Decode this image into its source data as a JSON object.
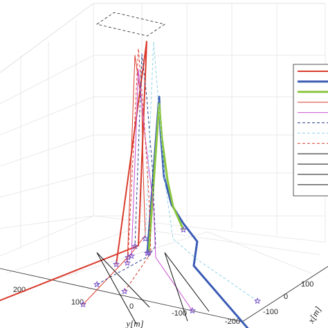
{
  "chart_data": {
    "type": "line",
    "title": "",
    "projection": "3d",
    "grid": true,
    "legend_placement": "right",
    "xlabel": "x[m]",
    "ylabel": "y[m]",
    "zlabel": "",
    "y_ticks": [
      "200",
      "100",
      "0",
      "-100",
      "-200"
    ],
    "x_ticks": [
      "100",
      "0",
      "-100"
    ],
    "series": [
      {
        "color": "#d93a2b",
        "style": "solid",
        "width": 2.0,
        "points": [
          [
            -88,
            -69
          ],
          [
            200,
            45
          ],
          [
            212,
            340
          ],
          [
            168,
            18
          ]
        ]
      },
      {
        "color": "#3a5bb5",
        "style": "solid",
        "width": 3.0,
        "points": [
          [
            368,
            -86
          ],
          [
            280,
            16
          ],
          [
            285,
            51
          ],
          [
            265,
            77
          ],
          [
            248,
            104
          ],
          [
            237,
            145
          ],
          [
            232,
            210
          ],
          [
            230,
            260
          ],
          [
            213,
            34
          ]
        ]
      },
      {
        "color": "#8cc63f",
        "style": "solid",
        "width": 3.0,
        "points": [
          [
            265,
            68
          ],
          [
            250,
            102
          ],
          [
            242,
            140
          ],
          [
            234,
            200
          ],
          [
            230,
            250
          ],
          [
            215,
            35
          ]
        ]
      },
      {
        "color": "#d93a2b",
        "style": "solid",
        "width": 1.0,
        "points": [
          [
            120,
            -40
          ],
          [
            190,
            34
          ],
          [
            210,
            60
          ],
          [
            207,
            150
          ],
          [
            205,
            250
          ],
          [
            195,
            320
          ],
          [
            184,
            20
          ]
        ]
      },
      {
        "color": "#c94fd1",
        "style": "solid",
        "width": 1.0,
        "points": [
          [
            278,
            -49
          ],
          [
            225,
            28
          ],
          [
            222,
            100
          ],
          [
            210,
            200
          ],
          [
            200,
            300
          ],
          [
            190,
            30
          ]
        ]
      },
      {
        "color": "#2b3f8a",
        "style": "dashed",
        "width": 1.0,
        "points": [
          [
            140,
            -11
          ],
          [
            215,
            30
          ],
          [
            225,
            45
          ],
          [
            220,
            160
          ],
          [
            212,
            260
          ],
          [
            205,
            322
          ],
          [
            195,
            44
          ]
        ]
      },
      {
        "color": "#8fd3e8",
        "style": "dashed",
        "width": 1.0,
        "points": [
          [
            372,
            -35
          ],
          [
            285,
            25
          ],
          [
            250,
            55
          ],
          [
            238,
            140
          ],
          [
            230,
            240
          ],
          [
            222,
            340
          ],
          [
            210,
            55
          ]
        ]
      },
      {
        "color": "#d93a2b",
        "style": "dashed",
        "width": 1.0,
        "points": [
          [
            180,
            -21
          ],
          [
            218,
            34
          ],
          [
            215,
            120
          ],
          [
            208,
            230
          ],
          [
            200,
            330
          ],
          [
            185,
            28
          ]
        ]
      },
      {
        "color": "#111111",
        "style": "solid",
        "width": 1.0,
        "points": [
          [
            197,
            -68
          ],
          [
            140,
            35
          ]
        ]
      },
      {
        "color": "#111111",
        "style": "solid",
        "width": 1.0,
        "points": [
          [
            271,
            -64
          ],
          [
            238,
            35
          ]
        ]
      },
      {
        "color": "#111111",
        "style": "solid",
        "width": 1.0,
        "points": [
          [
            302,
            -50
          ],
          [
            238,
            35
          ]
        ]
      },
      {
        "color": "#111111",
        "style": "solid",
        "width": 1.0,
        "points": [
          [
            216,
            -44
          ],
          [
            140,
            35
          ]
        ]
      }
    ],
    "legend_entries": [
      {
        "color": "#d93a2b",
        "style": "solid",
        "width": 2.0
      },
      {
        "color": "#3a5bb5",
        "style": "solid",
        "width": 3.0
      },
      {
        "color": "#8cc63f",
        "style": "solid",
        "width": 3.0
      },
      {
        "color": "#d93a2b",
        "style": "solid",
        "width": 1.0
      },
      {
        "color": "#c94fd1",
        "style": "solid",
        "width": 1.0
      },
      {
        "color": "#2b3f8a",
        "style": "dashed",
        "width": 1.0
      },
      {
        "color": "#8fd3e8",
        "style": "dashed",
        "width": 1.0
      },
      {
        "color": "#d93a2b",
        "style": "dashed",
        "width": 1.0
      },
      {
        "color": "#111111",
        "style": "solid",
        "width": 1.0
      },
      {
        "color": "#111111",
        "style": "solid",
        "width": 1.0
      },
      {
        "color": "#111111",
        "style": "solid",
        "width": 1.0
      },
      {
        "color": "#111111",
        "style": "solid",
        "width": 1.0
      }
    ],
    "markers": {
      "shape": "star",
      "color": "#7a52c7"
    }
  }
}
